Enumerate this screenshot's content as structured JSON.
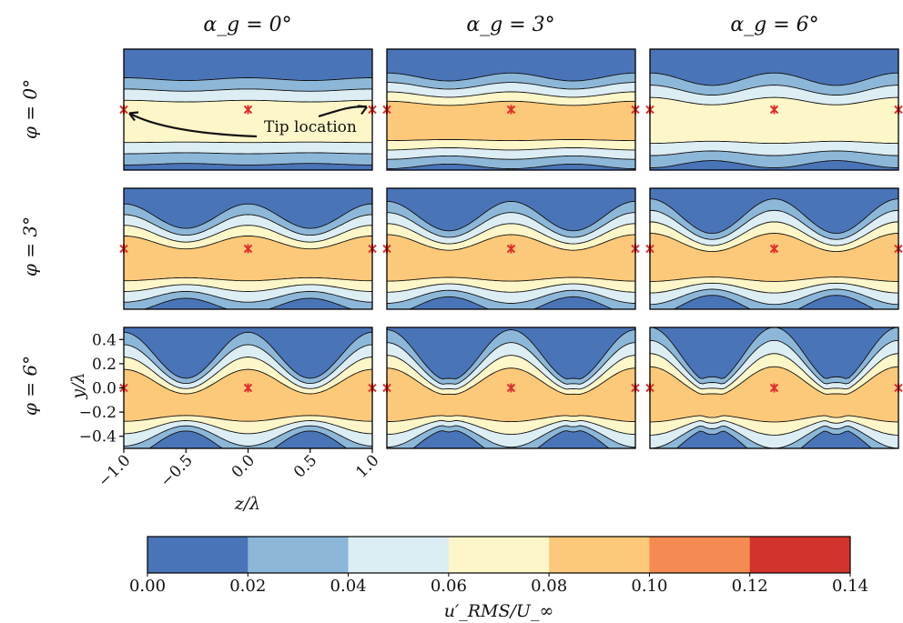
{
  "chart_data": {
    "type": "heatmap",
    "layout": "3x3 grid of filled contour maps",
    "column_titles": [
      "α_g = 0°",
      "α_g = 3°",
      "α_g = 6°"
    ],
    "row_titles": [
      "φ = 0°",
      "φ = 3°",
      "φ = 6°"
    ],
    "xlabel": "z/λ",
    "ylabel": "y/λ",
    "xlim": [
      -1.0,
      1.0
    ],
    "ylim": [
      -0.5,
      0.5
    ],
    "x_ticks": [
      "−1.0",
      "−0.5",
      "0.0",
      "0.5",
      "1.0"
    ],
    "x_tick_values": [
      -1.0,
      -0.5,
      0.0,
      0.5,
      1.0
    ],
    "y_ticks": [
      "0.4",
      "0.2",
      "0.0",
      "−0.2",
      "−0.4"
    ],
    "y_tick_values": [
      0.4,
      0.2,
      0.0,
      -0.2,
      -0.4
    ],
    "colorbar": {
      "label": "u′_RMS/U_∞",
      "levels": [
        0.0,
        0.02,
        0.04,
        0.06,
        0.08,
        0.1,
        0.12,
        0.14
      ],
      "tick_labels": [
        "0.00",
        "0.02",
        "0.04",
        "0.06",
        "0.08",
        "0.10",
        "0.12",
        "0.14"
      ],
      "colors": [
        "#4a74b8",
        "#8db7d8",
        "#dcedf4",
        "#fdf6c8",
        "#fcc97a",
        "#f58b52",
        "#d2332c"
      ]
    },
    "markers": {
      "symbol": "red star at tip location",
      "color": "#e0302a",
      "positions_z": [
        -1.0,
        0.0,
        1.0
      ],
      "position_y": 0.0
    },
    "annotation": "Tip location",
    "panels": [
      {
        "row": 0,
        "col": 0,
        "phi_deg": 0,
        "alpha_g_deg": 0,
        "peak_level": 0.08
      },
      {
        "row": 0,
        "col": 1,
        "phi_deg": 0,
        "alpha_g_deg": 3,
        "peak_level": 0.1
      },
      {
        "row": 0,
        "col": 2,
        "phi_deg": 0,
        "alpha_g_deg": 6,
        "peak_level": 0.08
      },
      {
        "row": 1,
        "col": 0,
        "phi_deg": 3,
        "alpha_g_deg": 0,
        "peak_level": 0.1
      },
      {
        "row": 1,
        "col": 1,
        "phi_deg": 3,
        "alpha_g_deg": 3,
        "peak_level": 0.1
      },
      {
        "row": 1,
        "col": 2,
        "phi_deg": 3,
        "alpha_g_deg": 6,
        "peak_level": 0.1
      },
      {
        "row": 2,
        "col": 0,
        "phi_deg": 6,
        "alpha_g_deg": 0,
        "peak_level": 0.1
      },
      {
        "row": 2,
        "col": 1,
        "phi_deg": 6,
        "alpha_g_deg": 3,
        "peak_level": 0.1
      },
      {
        "row": 2,
        "col": 2,
        "phi_deg": 6,
        "alpha_g_deg": 6,
        "peak_level": 0.1
      }
    ]
  }
}
